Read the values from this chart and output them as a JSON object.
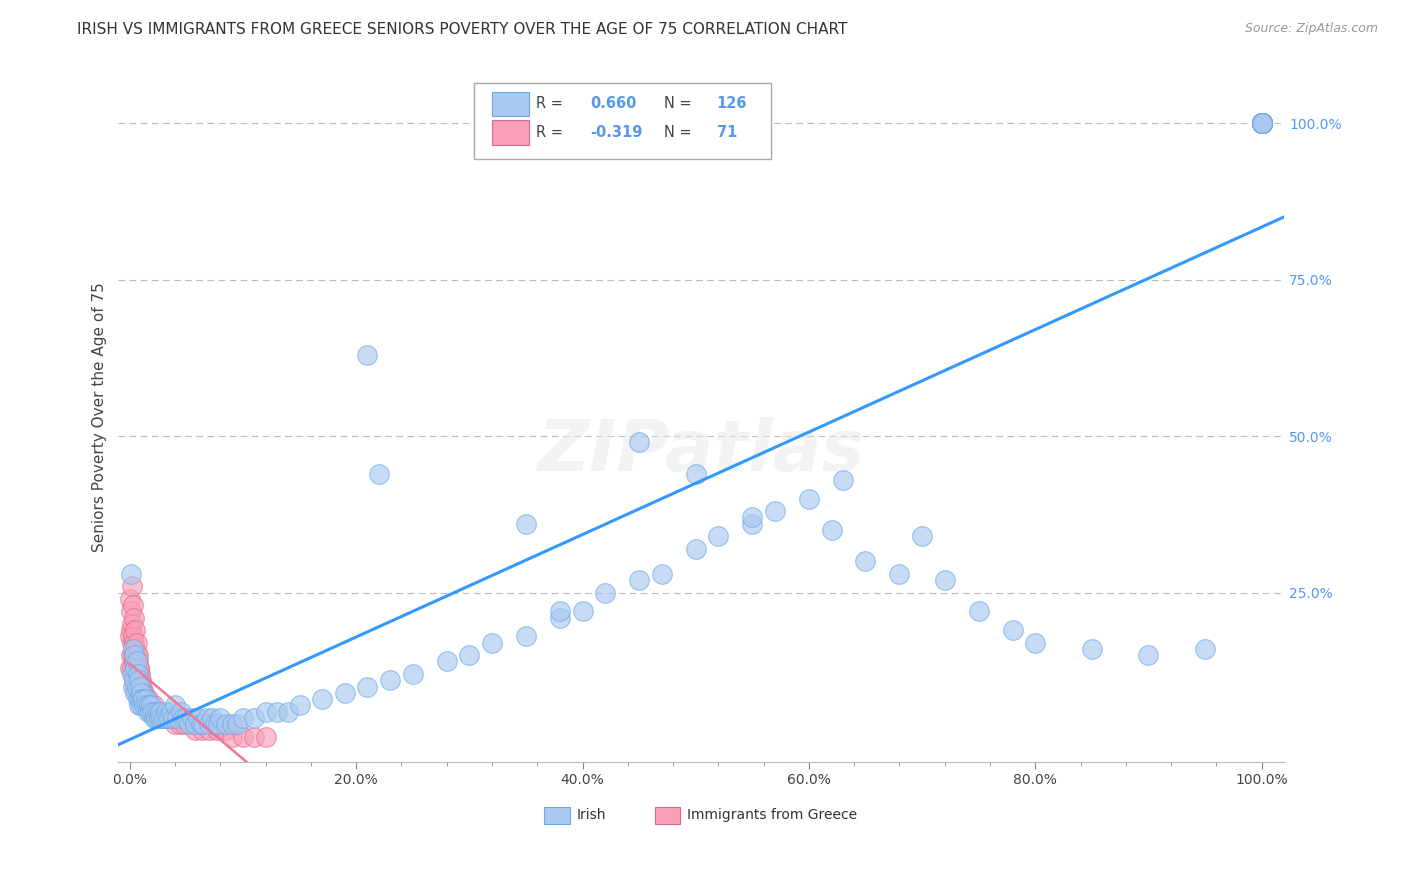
{
  "title": "IRISH VS IMMIGRANTS FROM GREECE SENIORS POVERTY OVER THE AGE OF 75 CORRELATION CHART",
  "source": "Source: ZipAtlas.com",
  "ylabel": "Seniors Poverty Over the Age of 75",
  "legend_irish_label": "Irish",
  "legend_greece_label": "Immigrants from Greece",
  "R_irish": 0.66,
  "N_irish": 126,
  "R_greece": -0.319,
  "N_greece": 71,
  "irish_color": "#aac8f0",
  "ireland_edge": "#6aaae8",
  "greece_color": "#f8a0b8",
  "greece_edge": "#e06888",
  "irish_line_color": "#3399ff",
  "greece_line_color": "#ee7799",
  "background_color": "#ffffff",
  "grid_color": "#bbbbbb",
  "title_color": "#333333",
  "axis_label_color": "#444444",
  "right_axis_color": "#5599ee",
  "watermark_color": "#dddddd",
  "irish_x": [
    0.001,
    0.002,
    0.003,
    0.003,
    0.004,
    0.004,
    0.005,
    0.005,
    0.006,
    0.006,
    0.007,
    0.007,
    0.008,
    0.008,
    0.009,
    0.009,
    0.01,
    0.01,
    0.011,
    0.012,
    0.013,
    0.014,
    0.015,
    0.016,
    0.017,
    0.018,
    0.019,
    0.02,
    0.021,
    0.022,
    0.023,
    0.025,
    0.026,
    0.027,
    0.028,
    0.03,
    0.032,
    0.033,
    0.035,
    0.036,
    0.038,
    0.04,
    0.042,
    0.045,
    0.047,
    0.05,
    0.052,
    0.055,
    0.058,
    0.06,
    0.063,
    0.065,
    0.068,
    0.07,
    0.073,
    0.075,
    0.078,
    0.08,
    0.085,
    0.09,
    0.095,
    0.1,
    0.11,
    0.12,
    0.13,
    0.14,
    0.15,
    0.17,
    0.19,
    0.21,
    0.23,
    0.25,
    0.28,
    0.3,
    0.32,
    0.35,
    0.38,
    0.4,
    0.42,
    0.45,
    0.47,
    0.5,
    0.52,
    0.55,
    0.57,
    0.6,
    0.63,
    0.21,
    0.22,
    0.35,
    0.38,
    0.45,
    0.5,
    0.55,
    0.62,
    0.65,
    0.68,
    0.7,
    0.72,
    0.75,
    0.78,
    0.8,
    0.85,
    0.9,
    0.95,
    1.0,
    1.0,
    1.0,
    1.0,
    1.0,
    1.0,
    1.0,
    1.0,
    1.0,
    1.0,
    1.0,
    1.0,
    1.0,
    1.0,
    1.0,
    1.0,
    1.0,
    1.0,
    1.0,
    1.0,
    1.0,
    1.0,
    1.0,
    1.0,
    1.0,
    1.0
  ],
  "irish_y": [
    0.28,
    0.12,
    0.16,
    0.1,
    0.15,
    0.11,
    0.13,
    0.09,
    0.14,
    0.1,
    0.12,
    0.08,
    0.11,
    0.07,
    0.1,
    0.08,
    0.09,
    0.07,
    0.08,
    0.08,
    0.07,
    0.08,
    0.07,
    0.06,
    0.07,
    0.06,
    0.07,
    0.06,
    0.05,
    0.06,
    0.05,
    0.06,
    0.05,
    0.06,
    0.05,
    0.05,
    0.06,
    0.05,
    0.05,
    0.06,
    0.05,
    0.07,
    0.05,
    0.06,
    0.05,
    0.05,
    0.04,
    0.05,
    0.04,
    0.05,
    0.04,
    0.04,
    0.05,
    0.04,
    0.05,
    0.04,
    0.04,
    0.05,
    0.04,
    0.04,
    0.04,
    0.05,
    0.05,
    0.06,
    0.06,
    0.06,
    0.07,
    0.08,
    0.09,
    0.1,
    0.11,
    0.12,
    0.14,
    0.15,
    0.17,
    0.18,
    0.21,
    0.22,
    0.25,
    0.27,
    0.28,
    0.32,
    0.34,
    0.36,
    0.38,
    0.4,
    0.43,
    0.63,
    0.44,
    0.36,
    0.22,
    0.49,
    0.44,
    0.37,
    0.35,
    0.3,
    0.28,
    0.34,
    0.27,
    0.22,
    0.19,
    0.17,
    0.16,
    0.15,
    0.16,
    1.0,
    1.0,
    1.0,
    1.0,
    1.0,
    1.0,
    1.0,
    1.0,
    1.0,
    1.0,
    1.0,
    1.0,
    1.0,
    1.0,
    1.0,
    1.0,
    1.0,
    1.0,
    1.0,
    1.0,
    1.0,
    1.0,
    1.0,
    1.0,
    1.0,
    1.0
  ],
  "greece_x": [
    0.0,
    0.0,
    0.0,
    0.001,
    0.001,
    0.001,
    0.002,
    0.002,
    0.002,
    0.003,
    0.003,
    0.003,
    0.004,
    0.004,
    0.004,
    0.005,
    0.005,
    0.005,
    0.006,
    0.006,
    0.006,
    0.007,
    0.007,
    0.007,
    0.008,
    0.008,
    0.009,
    0.009,
    0.01,
    0.01,
    0.011,
    0.011,
    0.012,
    0.012,
    0.013,
    0.013,
    0.014,
    0.015,
    0.016,
    0.017,
    0.018,
    0.019,
    0.02,
    0.021,
    0.022,
    0.023,
    0.025,
    0.027,
    0.03,
    0.033,
    0.036,
    0.04,
    0.044,
    0.048,
    0.053,
    0.058,
    0.064,
    0.07,
    0.077,
    0.085,
    0.09,
    0.1,
    0.11,
    0.12,
    0.002,
    0.003,
    0.004,
    0.005,
    0.006,
    0.007,
    0.008
  ],
  "greece_y": [
    0.24,
    0.18,
    0.13,
    0.22,
    0.19,
    0.15,
    0.2,
    0.17,
    0.13,
    0.18,
    0.15,
    0.12,
    0.17,
    0.14,
    0.11,
    0.16,
    0.13,
    0.1,
    0.15,
    0.12,
    0.09,
    0.14,
    0.11,
    0.09,
    0.13,
    0.1,
    0.12,
    0.09,
    0.11,
    0.08,
    0.1,
    0.08,
    0.09,
    0.07,
    0.09,
    0.07,
    0.08,
    0.07,
    0.08,
    0.07,
    0.07,
    0.06,
    0.06,
    0.07,
    0.06,
    0.06,
    0.05,
    0.05,
    0.05,
    0.05,
    0.05,
    0.04,
    0.04,
    0.04,
    0.04,
    0.03,
    0.03,
    0.03,
    0.03,
    0.03,
    0.02,
    0.02,
    0.02,
    0.02,
    0.26,
    0.23,
    0.21,
    0.19,
    0.17,
    0.15,
    0.13
  ],
  "xtick_labels": [
    "0.0%",
    "",
    "",
    "",
    "",
    "20.0%",
    "",
    "",
    "",
    "",
    "40.0%",
    "",
    "",
    "",
    "",
    "60.0%",
    "",
    "",
    "",
    "",
    "80.0%",
    "",
    "",
    "",
    "",
    "100.0%"
  ],
  "xtick_values": [
    0.0,
    0.04,
    0.08,
    0.12,
    0.16,
    0.2,
    0.24,
    0.28,
    0.32,
    0.36,
    0.4,
    0.44,
    0.48,
    0.52,
    0.56,
    0.6,
    0.64,
    0.68,
    0.72,
    0.76,
    0.8,
    0.84,
    0.88,
    0.92,
    0.96,
    1.0
  ],
  "major_xtick_labels": [
    "0.0%",
    "20.0%",
    "40.0%",
    "60.0%",
    "80.0%",
    "100.0%"
  ],
  "major_xtick_values": [
    0.0,
    0.2,
    0.4,
    0.6,
    0.8,
    1.0
  ],
  "right_ytick_labels": [
    "100.0%",
    "75.0%",
    "50.0%",
    "25.0%"
  ],
  "right_ytick_values": [
    1.0,
    0.75,
    0.5,
    0.25
  ],
  "xlim": [
    -0.01,
    1.02
  ],
  "ylim": [
    -0.02,
    1.08
  ],
  "figsize": [
    14.06,
    8.92
  ],
  "dpi": 100
}
